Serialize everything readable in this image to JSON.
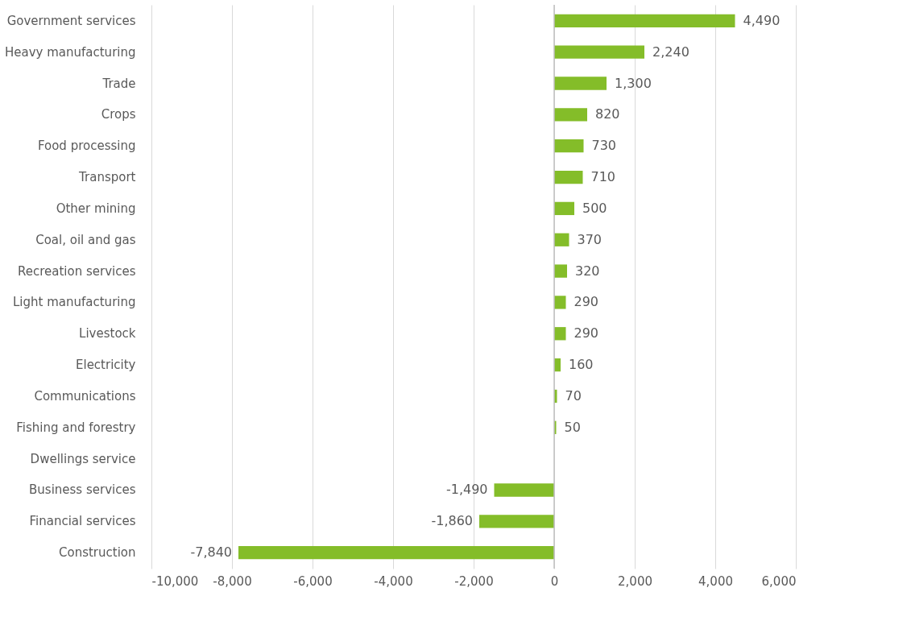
{
  "chart_data": {
    "type": "bar",
    "orientation": "horizontal",
    "categories": [
      "Government services",
      "Heavy manufacturing",
      "Trade",
      "Crops",
      "Food processing",
      "Transport",
      "Other mining",
      "Coal, oil and gas",
      "Recreation services",
      "Light manufacturing",
      "Livestock",
      "Electricity",
      "Communications",
      "Fishing and forestry",
      "Dwellings service",
      "Business services",
      "Financial services",
      "Construction"
    ],
    "values": [
      4490,
      2240,
      1300,
      820,
      730,
      710,
      500,
      370,
      320,
      290,
      290,
      160,
      70,
      50,
      null,
      -1490,
      -1860,
      -7840
    ],
    "value_labels": [
      "4,490",
      "2,240",
      "1,300",
      "820",
      "730",
      "710",
      "500",
      "370",
      "320",
      "290",
      "290",
      "160",
      "70",
      "50",
      null,
      "-1,490",
      "-1,860",
      "-7,840"
    ],
    "color": "#84bd29",
    "xlim": [
      -10000,
      6000
    ],
    "xticks": [
      {
        "value": -10000,
        "label": "-10,000"
      },
      {
        "value": -8000,
        "label": "-8,000"
      },
      {
        "value": -6000,
        "label": "-6,000"
      },
      {
        "value": -4000,
        "label": "-4,000"
      },
      {
        "value": -2000,
        "label": "-2,000"
      },
      0,
      {
        "value": 2000,
        "label": "2,000"
      },
      {
        "value": 4000,
        "label": "4,000"
      },
      {
        "value": 6000,
        "label": "6,000"
      }
    ],
    "grid": "x",
    "ref_lines": [
      {
        "axis": "x",
        "value": 0,
        "color": "#bfbfbf"
      }
    ]
  }
}
